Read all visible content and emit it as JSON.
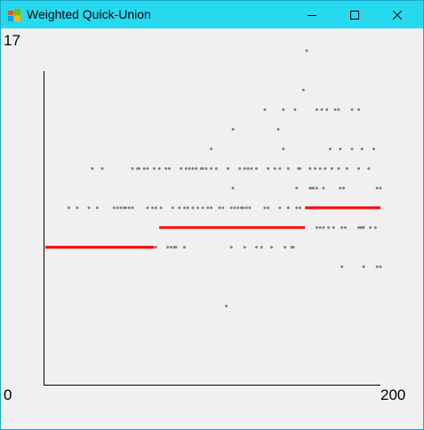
{
  "window": {
    "title": "Weighted Quick-Union",
    "icons": {
      "app": "app-icon",
      "minimize": "minimize-icon",
      "maximize": "maximize-icon",
      "close": "close-icon"
    }
  },
  "chart_data": {
    "type": "scatter",
    "x_label_max": "200",
    "x_label_min": "0",
    "y_label_max": "17",
    "xlim": [
      0,
      200
    ],
    "ylim": [
      0,
      17
    ],
    "series": [
      {
        "color": "#808080",
        "points": [
          [
            156,
            17
          ],
          [
            154,
            15
          ],
          [
            131,
            14
          ],
          [
            112,
            13
          ],
          [
            99,
            12
          ],
          [
            139,
            13
          ],
          [
            142,
            12
          ],
          [
            170,
            12
          ],
          [
            176,
            12
          ],
          [
            183,
            12
          ],
          [
            189,
            12
          ],
          [
            196,
            12
          ],
          [
            142,
            14
          ],
          [
            149,
            14
          ],
          [
            162,
            14
          ],
          [
            165,
            14
          ],
          [
            168,
            14
          ],
          [
            173,
            14
          ],
          [
            175,
            14
          ],
          [
            183,
            14
          ],
          [
            187,
            14
          ],
          [
            28,
            11
          ],
          [
            34,
            11
          ],
          [
            52,
            11
          ],
          [
            55,
            11
          ],
          [
            56,
            11
          ],
          [
            59,
            11
          ],
          [
            61,
            11
          ],
          [
            65,
            11
          ],
          [
            68,
            11
          ],
          [
            72,
            11
          ],
          [
            74,
            11
          ],
          [
            81,
            11
          ],
          [
            84,
            11
          ],
          [
            86,
            11
          ],
          [
            88,
            11
          ],
          [
            90,
            11
          ],
          [
            93,
            11
          ],
          [
            94,
            11
          ],
          [
            96,
            11
          ],
          [
            99,
            11
          ],
          [
            102,
            11
          ],
          [
            109,
            11
          ],
          [
            116,
            11
          ],
          [
            119,
            11
          ],
          [
            121,
            11
          ],
          [
            123,
            11
          ],
          [
            126,
            11
          ],
          [
            133,
            11
          ],
          [
            137,
            11
          ],
          [
            140,
            11
          ],
          [
            145,
            11
          ],
          [
            151,
            11
          ],
          [
            152,
            11
          ],
          [
            158,
            11
          ],
          [
            161,
            11
          ],
          [
            164,
            11
          ],
          [
            167,
            11
          ],
          [
            171,
            11
          ],
          [
            175,
            11
          ],
          [
            180,
            11
          ],
          [
            187,
            11
          ],
          [
            193,
            11
          ],
          [
            112,
            10
          ],
          [
            150,
            10
          ],
          [
            158,
            10
          ],
          [
            159,
            10
          ],
          [
            160,
            10
          ],
          [
            162,
            10
          ],
          [
            166,
            10
          ],
          [
            176,
            10
          ],
          [
            178,
            10
          ],
          [
            198,
            10
          ],
          [
            200,
            10
          ],
          [
            14,
            9
          ],
          [
            19,
            9
          ],
          [
            26,
            9
          ],
          [
            31,
            9
          ],
          [
            41,
            9
          ],
          [
            43,
            9
          ],
          [
            45,
            9
          ],
          [
            47,
            9
          ],
          [
            48,
            9
          ],
          [
            50,
            9
          ],
          [
            52,
            9
          ],
          [
            61,
            9
          ],
          [
            64,
            9
          ],
          [
            66,
            9
          ],
          [
            69,
            9
          ],
          [
            76,
            9
          ],
          [
            80,
            9
          ],
          [
            83,
            9
          ],
          [
            85,
            9
          ],
          [
            88,
            9
          ],
          [
            91,
            9
          ],
          [
            94,
            9
          ],
          [
            97,
            9
          ],
          [
            99,
            9
          ],
          [
            104,
            9
          ],
          [
            106,
            9
          ],
          [
            111,
            9
          ],
          [
            113,
            9
          ],
          [
            115,
            9
          ],
          [
            117,
            9
          ],
          [
            118,
            9
          ],
          [
            120,
            9
          ],
          [
            122,
            9
          ],
          [
            131,
            9
          ],
          [
            133,
            9
          ],
          [
            140,
            9
          ],
          [
            145,
            9
          ],
          [
            150,
            9
          ],
          [
            152,
            9
          ],
          [
            162,
            8
          ],
          [
            164,
            8
          ],
          [
            166,
            8
          ],
          [
            169,
            8
          ],
          [
            172,
            8
          ],
          [
            177,
            8
          ],
          [
            179,
            8
          ],
          [
            187,
            8
          ],
          [
            188,
            8
          ],
          [
            189,
            8
          ],
          [
            190,
            8
          ],
          [
            194,
            8
          ],
          [
            197,
            8
          ],
          [
            66,
            7
          ],
          [
            73,
            7
          ],
          [
            75,
            7
          ],
          [
            77,
            7
          ],
          [
            78,
            7
          ],
          [
            83,
            7
          ],
          [
            111,
            7
          ],
          [
            119,
            7
          ],
          [
            126,
            7
          ],
          [
            129,
            7
          ],
          [
            135,
            7
          ],
          [
            143,
            7
          ],
          [
            147,
            7
          ],
          [
            148,
            7
          ],
          [
            177,
            6
          ],
          [
            190,
            6
          ],
          [
            198,
            6
          ],
          [
            200,
            6
          ],
          [
            108,
            4
          ]
        ]
      },
      {
        "color": "#ff0000",
        "segments": [
          {
            "from": 0,
            "to": 65,
            "y": 7
          },
          {
            "from": 68,
            "to": 155,
            "y": 8
          },
          {
            "from": 155,
            "to": 200,
            "y": 9
          }
        ]
      }
    ]
  }
}
